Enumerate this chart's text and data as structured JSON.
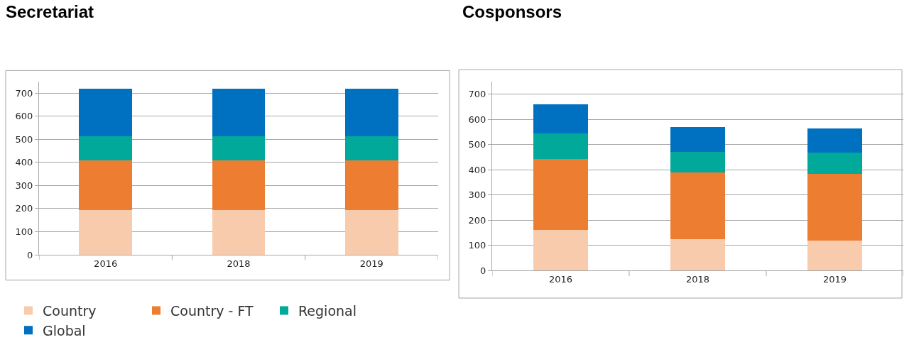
{
  "chart_data": [
    {
      "type": "bar",
      "title": "Secretariat",
      "categories": [
        "2016",
        "2018",
        "2019"
      ],
      "stacked": true,
      "ylim": [
        0,
        750
      ],
      "yticks": [
        0,
        100,
        200,
        300,
        400,
        500,
        600,
        700
      ],
      "grid": "y",
      "legend": "bottom",
      "series": [
        {
          "name": "Country",
          "color": "#f8cbad",
          "values": [
            195,
            195,
            195
          ]
        },
        {
          "name": "Country - FT",
          "color": "#ed7d31",
          "values": [
            215,
            215,
            215
          ]
        },
        {
          "name": "Regional",
          "color": "#00a99a",
          "values": [
            102,
            102,
            102
          ]
        },
        {
          "name": "Global",
          "color": "#0070c0",
          "values": [
            206,
            206,
            206
          ]
        }
      ]
    },
    {
      "type": "bar",
      "title": "Cosponsors",
      "categories": [
        "2016",
        "2018",
        "2019"
      ],
      "stacked": true,
      "ylim": [
        0,
        750
      ],
      "yticks": [
        0,
        100,
        200,
        300,
        400,
        500,
        600,
        700
      ],
      "grid": "y",
      "series": [
        {
          "color": "#f8cbad",
          "values": [
            161,
            124,
            118
          ]
        },
        {
          "color": "#ed7d31",
          "values": [
            283,
            265,
            266
          ]
        },
        {
          "color": "#00a99a",
          "values": [
            99,
            83,
            83
          ]
        },
        {
          "color": "#0070c0",
          "values": [
            116,
            97,
            97
          ]
        }
      ]
    }
  ]
}
